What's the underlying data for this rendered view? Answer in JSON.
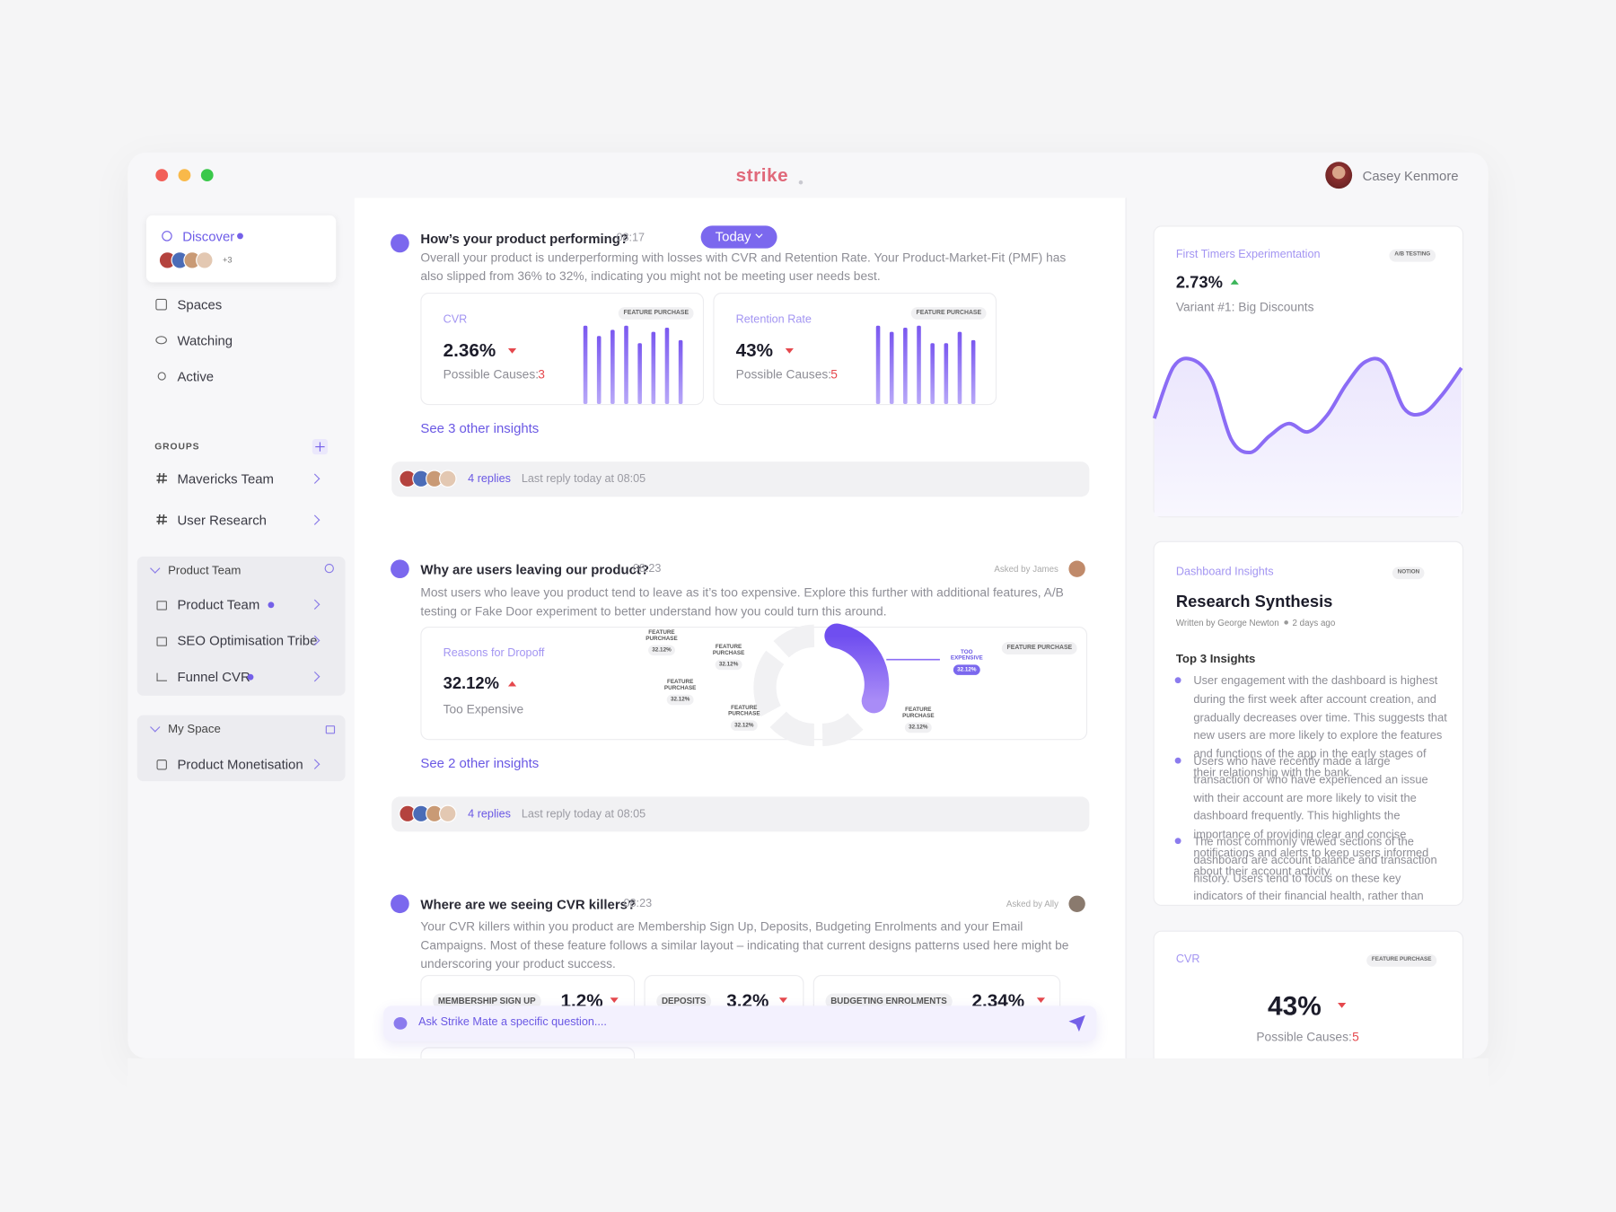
{
  "header": {
    "brand": "strike",
    "user": "Casey Kenmore"
  },
  "sidebar": {
    "discover": {
      "label": "Discover",
      "extra": "+3"
    },
    "nav": [
      "Spaces",
      "Watching",
      "Active"
    ],
    "groups_title": "GROUPS",
    "groups": [
      "Mavericks Team",
      "User Research"
    ],
    "product_team": {
      "title": "Product Team",
      "items": [
        "Product Team",
        "SEO Optimisation Tribe",
        "Funnel CVR"
      ]
    },
    "my_space": {
      "title": "My Space",
      "items": [
        "Product Monetisation"
      ]
    }
  },
  "feed": [
    {
      "title": "How’s your product performing?",
      "time": "08:17",
      "filter": "Today",
      "body": "Overall your product is underperforming with losses with CVR and Retention Rate. Your Product-Market-Fit (PMF) has also slipped from 36% to 32%, indicating you might not be meeting user needs best.",
      "cards": [
        {
          "label": "CVR",
          "tag": "FEATURE PURCHASE",
          "value": "2.36%",
          "causes_label": "Possible Causes:",
          "causes": 3,
          "bars": [
            76,
            66,
            72,
            76,
            59,
            70,
            74,
            62
          ]
        },
        {
          "label": "Retention Rate",
          "tag": "FEATURE PURCHASE",
          "value": "43%",
          "causes_label": "Possible Causes:",
          "causes": 5,
          "bars": [
            76,
            70,
            74,
            76,
            59,
            59,
            70,
            62
          ]
        }
      ],
      "link": "See 3 other insights",
      "replies": "4 replies",
      "last_reply": "Last reply today at 08:05"
    },
    {
      "title": "Why are users leaving our product?",
      "time": "08:23",
      "asked": "Asked by James",
      "body": "Most users who leave you product tend to leave as it’s too expensive. Explore this further with additional features, A/B testing or Fake Door experiment to better understand how you could turn this around.",
      "card": {
        "label": "Reasons for Dropoff",
        "value": "32.12%",
        "caption": "Too Expensive",
        "tag": "FEATURE PURCHASE",
        "segments": [
          {
            "label": "FEATURE PURCHASE",
            "value": "32.12%"
          },
          {
            "label": "FEATURE PURCHASE",
            "value": "32.12%"
          },
          {
            "label": "FEATURE PURCHASE",
            "value": "32.12%"
          },
          {
            "label": "FEATURE PURCHASE",
            "value": "32.12%"
          },
          {
            "label": "FEATURE PURCHASE",
            "value": "32.12%"
          }
        ],
        "highlight": {
          "label": "TOO EXPENSIVE",
          "value": "32.12%"
        }
      },
      "link": "See 2 other insights",
      "replies": "4 replies",
      "last_reply": "Last reply today at 08:05"
    },
    {
      "title": "Where are we seeing CVR killers?",
      "time": "08:23",
      "asked": "Asked by Ally",
      "body": "Your CVR killers within you product are Membership Sign Up, Deposits, Budgeting Enrolments and your Email Campaigns. Most of these feature follows a similar layout – indicating that current designs patterns used here might be underscoring your product success.",
      "chips": [
        {
          "label": "MEMBERSHIP SIGN UP",
          "value": "1.2%"
        },
        {
          "label": "DEPOSITS",
          "value": "3.2%"
        },
        {
          "label": "BUDGETING ENROLMENTS",
          "value": "2.34%"
        }
      ]
    }
  ],
  "composer": {
    "placeholder": "Ask Strike Mate a specific question...."
  },
  "right": {
    "experiment": {
      "label": "First Timers Experimentation",
      "tag": "A/B TESTING",
      "value": "2.73%",
      "variant": "Variant #1: Big Discounts",
      "line": [
        95,
        145,
        152,
        132,
        75,
        62,
        78,
        90,
        82,
        98,
        128,
        150,
        148,
        105,
        100,
        118,
        144
      ]
    },
    "insights": {
      "label": "Dashboard Insights",
      "tag": "NOTION",
      "title": "Research Synthesis",
      "author": "Written by George Newton",
      "date": "2 days ago",
      "heading": "Top 3 Insights",
      "bullets": [
        "User engagement with the dashboard is highest during the first week after account creation, and gradually decreases over time. This suggests that new users are more likely to explore the features and functions of the app in the early stages of their relationship with the bank.",
        "Users who have recently made a large transaction or who have experienced an issue with their account are more likely to visit the dashboard frequently. This highlights the importance of providing clear and concise notifications and alerts to keep users informed about their account activity.",
        "The most commonly viewed sections of the dashboard are account balance and transaction history. Users tend to focus on these key indicators of their financial health, rather than delving into"
      ]
    },
    "cvr": {
      "label": "CVR",
      "tag": "FEATURE PURCHASE",
      "value": "43%",
      "causes_label": "Possible Causes:",
      "causes": 5
    }
  }
}
